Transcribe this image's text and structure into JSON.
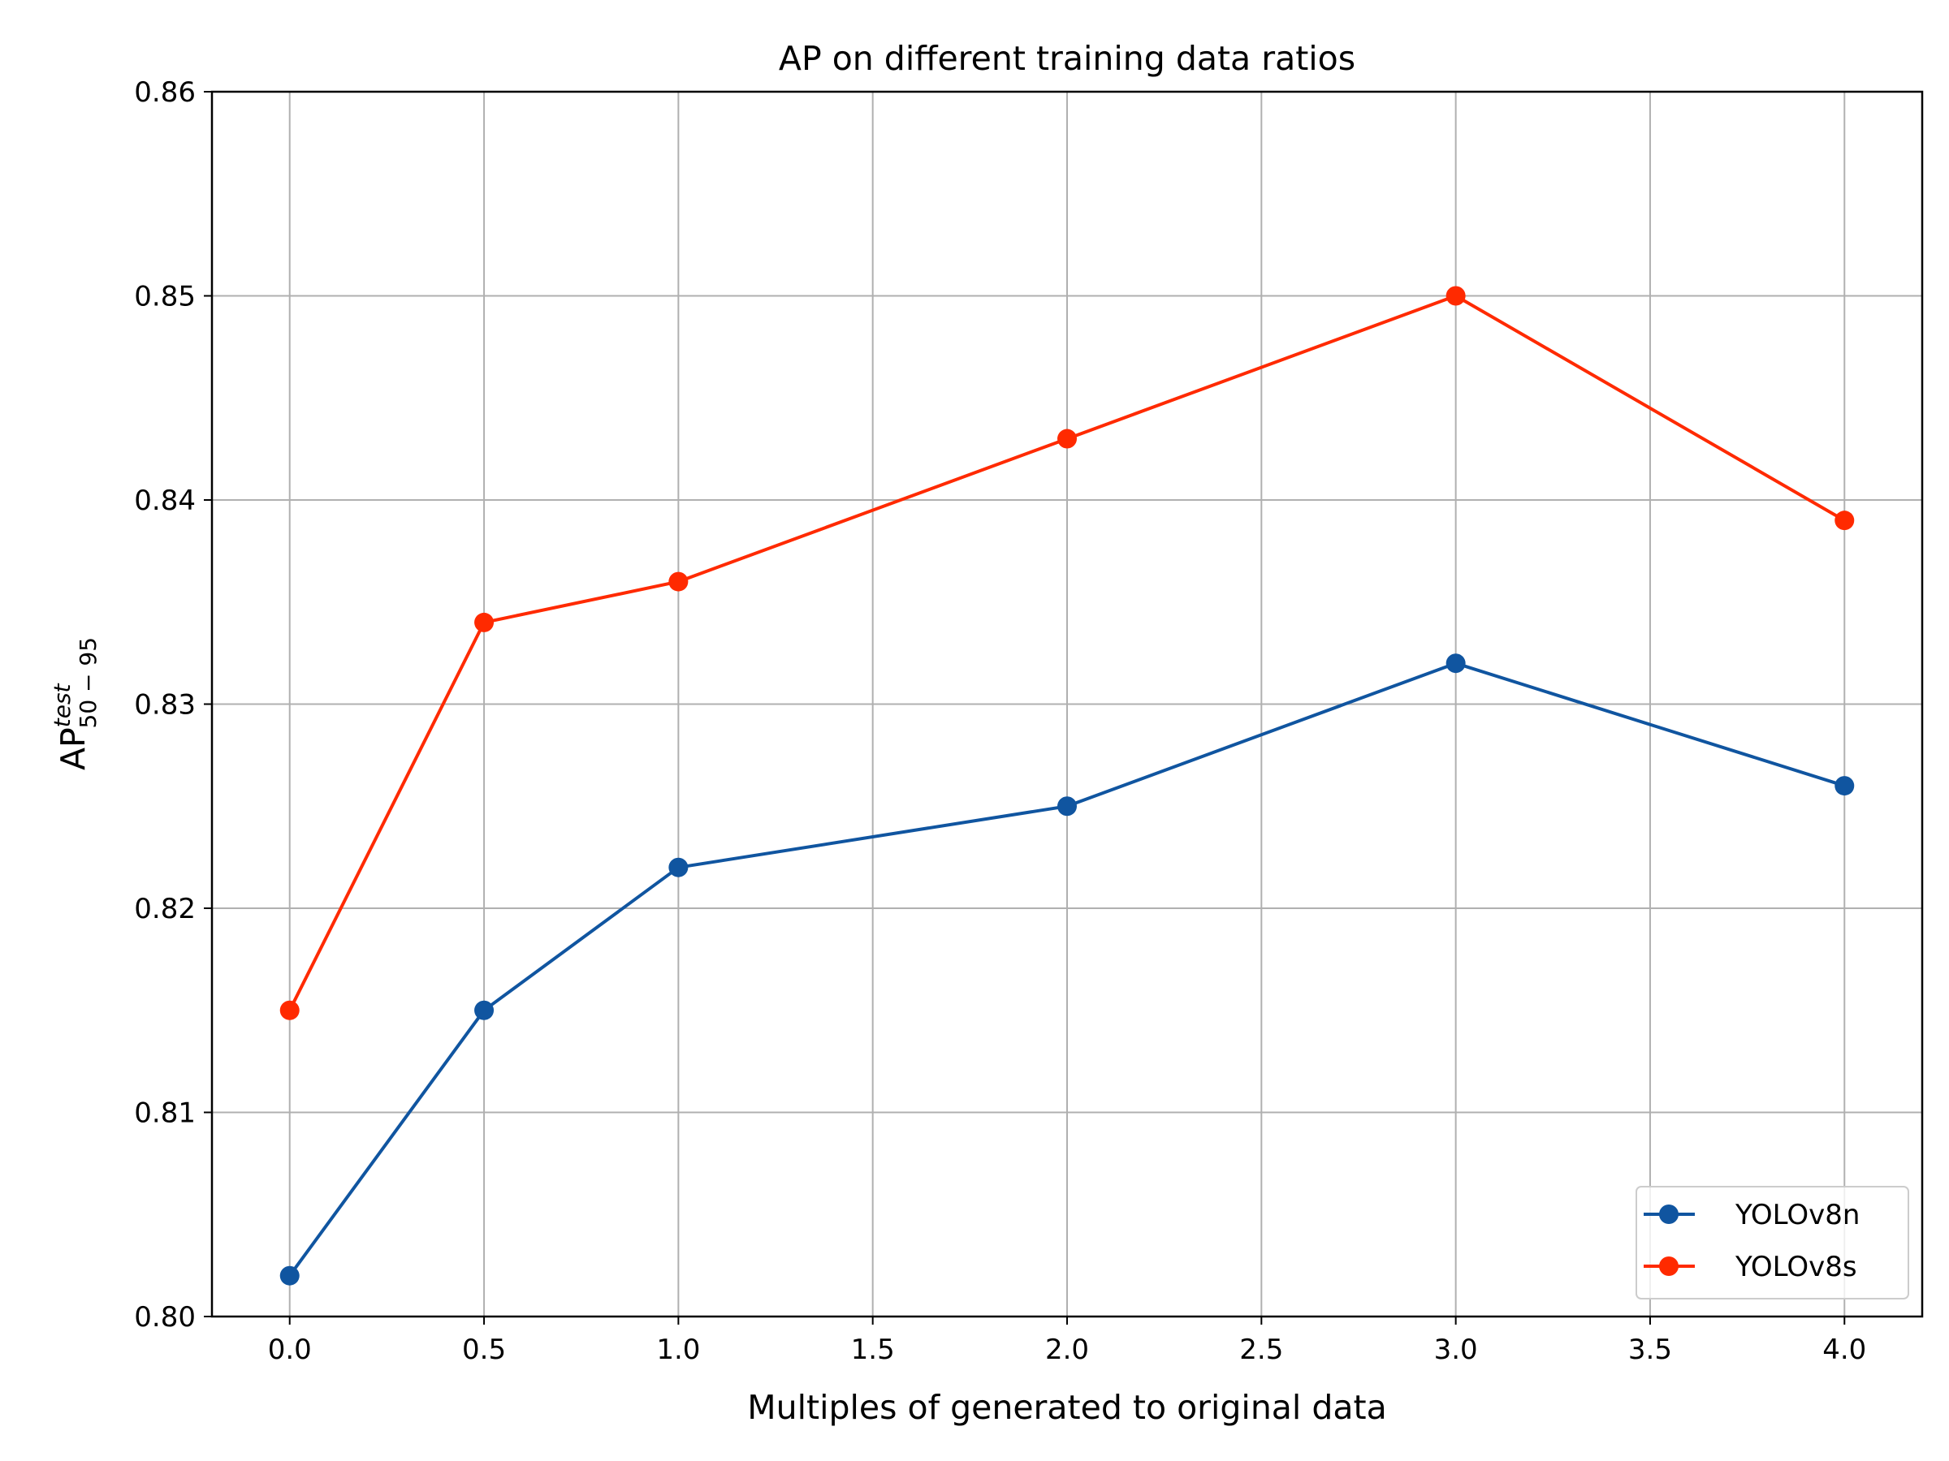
{
  "chart_data": {
    "type": "line",
    "title": "AP on different training data ratios",
    "xlabel": "Multiples of generated to original data",
    "ylabel": {
      "base": "AP",
      "superscript": "test",
      "subscript": "50 − 95"
    },
    "xlim": [
      -0.2,
      4.2
    ],
    "ylim": [
      0.8,
      0.86
    ],
    "xticks": [
      0.0,
      0.5,
      1.0,
      1.5,
      2.0,
      2.5,
      3.0,
      3.5,
      4.0
    ],
    "xtick_labels": [
      "0.0",
      "0.5",
      "1.0",
      "1.5",
      "2.0",
      "2.5",
      "3.0",
      "3.5",
      "4.0"
    ],
    "yticks": [
      0.8,
      0.81,
      0.82,
      0.83,
      0.84,
      0.85,
      0.86
    ],
    "ytick_labels": [
      "0.80",
      "0.81",
      "0.82",
      "0.83",
      "0.84",
      "0.85",
      "0.86"
    ],
    "grid": true,
    "legend_position": "lower-right",
    "x": [
      0.0,
      0.5,
      1.0,
      2.0,
      3.0,
      4.0
    ],
    "series": [
      {
        "name": "YOLOv8n",
        "color": "#1055a0",
        "marker": "circle",
        "values": [
          0.802,
          0.815,
          0.822,
          0.825,
          0.832,
          0.826
        ]
      },
      {
        "name": "YOLOv8s",
        "color": "#ff2a00",
        "marker": "circle",
        "values": [
          0.815,
          0.834,
          0.836,
          0.843,
          0.85,
          0.839
        ]
      }
    ]
  }
}
